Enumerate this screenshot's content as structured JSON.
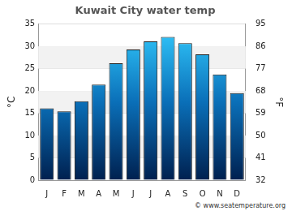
{
  "chart_data": {
    "type": "bar",
    "title": "Kuwait City water temp",
    "categories": [
      "J",
      "F",
      "M",
      "A",
      "M",
      "J",
      "J",
      "A",
      "S",
      "O",
      "N",
      "D"
    ],
    "values": [
      16.1,
      15.4,
      17.7,
      21.4,
      26.2,
      29.3,
      31.1,
      32.1,
      30.7,
      28.2,
      23.7,
      19.5
    ],
    "color": "#33ccff",
    "y_label": "°C",
    "y2_label": "°F",
    "ylim": [
      0,
      35
    ],
    "yticks": [
      0,
      5,
      10,
      15,
      20,
      25,
      30,
      35
    ],
    "y2lim": [
      32,
      95
    ],
    "y2ticks": [
      32,
      41,
      50,
      59,
      68,
      77,
      86,
      95
    ],
    "grid": true,
    "footer": "© www.seatemperature.org"
  }
}
